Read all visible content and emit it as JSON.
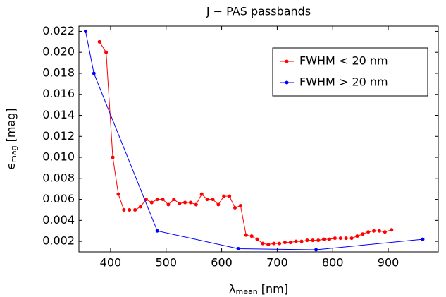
{
  "chart_data": {
    "type": "line",
    "title": "J − PAS passbands",
    "x_label": {
      "symbol": "λ",
      "subscript": "mean",
      "unit": "[nm]"
    },
    "y_label": {
      "symbol": "ϵ",
      "subscript": "mag",
      "unit": "[mag]"
    },
    "xlim": [
      343,
      990
    ],
    "xticks": [
      400,
      500,
      600,
      700,
      800,
      900
    ],
    "ylim": [
      0.001,
      0.0225
    ],
    "yticks": [
      0.002,
      0.004,
      0.006,
      0.008,
      {
        "value": 0.01,
        "label": "0.010"
      },
      0.012,
      0.014,
      0.016,
      0.018,
      {
        "value": 0.02,
        "label": "0.020"
      },
      0.022
    ],
    "legend": "upper right",
    "series": [
      {
        "name": "FWHM < 20 nm",
        "color": "#ff0000",
        "x": [
          380,
          392,
          404,
          414,
          424,
          434,
          444,
          454,
          464,
          474,
          484,
          494,
          504,
          514,
          524,
          534,
          544,
          554,
          564,
          574,
          584,
          594,
          604,
          614,
          624,
          634,
          644,
          654,
          664,
          674,
          684,
          694,
          704,
          714,
          724,
          734,
          744,
          754,
          764,
          774,
          784,
          794,
          804,
          814,
          824,
          834,
          844,
          854,
          864,
          874,
          884,
          894,
          906
        ],
        "values": [
          0.021,
          0.02,
          0.01,
          0.0065,
          0.005,
          0.005,
          0.005,
          0.0053,
          0.006,
          0.0057,
          0.006,
          0.006,
          0.0055,
          0.006,
          0.0056,
          0.0057,
          0.0057,
          0.0055,
          0.0065,
          0.006,
          0.006,
          0.0055,
          0.0063,
          0.0063,
          0.0052,
          0.0054,
          0.0026,
          0.0025,
          0.0022,
          0.0018,
          0.0017,
          0.0018,
          0.0018,
          0.0019,
          0.0019,
          0.002,
          0.002,
          0.0021,
          0.0021,
          0.0021,
          0.0022,
          0.0022,
          0.0023,
          0.0023,
          0.0023,
          0.0023,
          0.0025,
          0.0027,
          0.0029,
          0.003,
          0.003,
          0.0029,
          0.0031
        ]
      },
      {
        "name": "FWHM > 20 nm",
        "color": "#0000ff",
        "x": [
          355,
          370,
          484,
          630,
          770,
          962
        ],
        "values": [
          0.022,
          0.018,
          0.003,
          0.0013,
          0.0012,
          0.0022
        ]
      }
    ]
  }
}
